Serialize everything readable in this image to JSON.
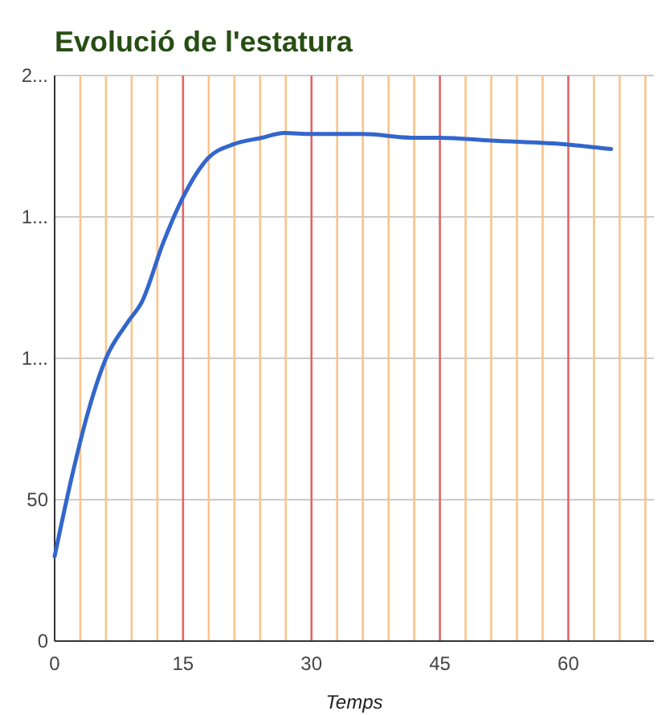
{
  "chart_data": {
    "type": "line",
    "title": "Evolució de l'estatura",
    "xlabel": "Temps",
    "x": [
      0,
      2,
      4,
      6,
      8.6,
      10.2,
      12.7,
      15,
      18,
      20.8,
      24.2,
      26.8,
      30,
      36,
      42,
      45,
      51,
      60,
      65
    ],
    "series": [
      {
        "color": "#3366cc",
        "values": [
          30,
          58,
          82,
          100,
          113,
          120,
          141,
          157,
          171,
          175.6,
          178,
          179.7,
          179.3,
          179.3,
          178,
          178,
          177,
          175.6,
          174
        ]
      }
    ],
    "xlim": [
      0,
      70
    ],
    "xticks": [
      0,
      {
        "value": 3,
        "label": null
      },
      {
        "value": 6,
        "label": null
      },
      {
        "value": 9,
        "label": null
      },
      {
        "value": 12,
        "label": null
      },
      15,
      {
        "value": 18,
        "label": null
      },
      {
        "value": 21,
        "label": null
      },
      {
        "value": 24,
        "label": null
      },
      {
        "value": 27,
        "label": null
      },
      30,
      {
        "value": 33,
        "label": null
      },
      {
        "value": 36,
        "label": null
      },
      {
        "value": 39,
        "label": null
      },
      {
        "value": 42,
        "label": null
      },
      45,
      {
        "value": 48,
        "label": null
      },
      {
        "value": 51,
        "label": null
      },
      {
        "value": 54,
        "label": null
      },
      {
        "value": 57,
        "label": null
      },
      60,
      {
        "value": 63,
        "label": null
      },
      {
        "value": 66,
        "label": null
      },
      {
        "value": 69,
        "label": null
      }
    ],
    "ylim": [
      0,
      200
    ],
    "yticks": [
      0,
      50,
      {
        "value": 100,
        "label": "1..."
      },
      {
        "value": 150,
        "label": "1..."
      },
      {
        "value": 200,
        "label": "2..."
      }
    ],
    "grid": true,
    "marker": "none",
    "line_style": "solid"
  }
}
